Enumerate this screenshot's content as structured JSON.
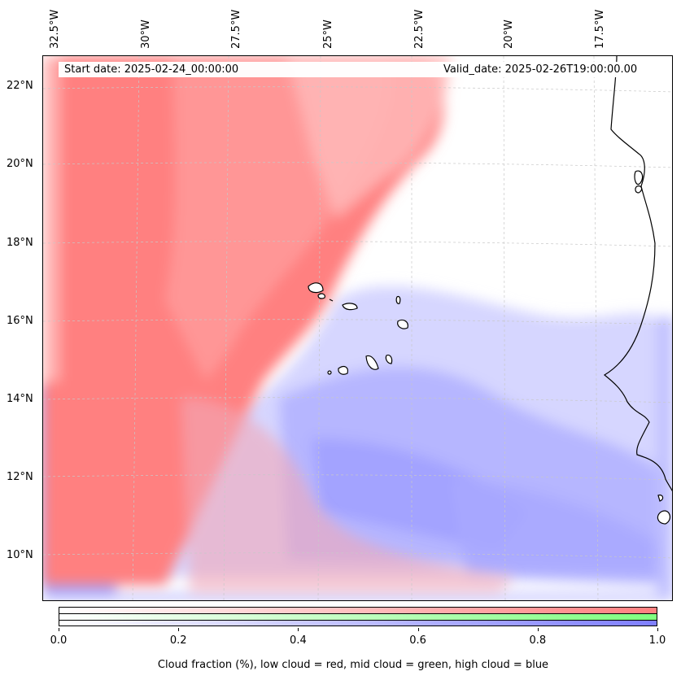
{
  "map": {
    "start_label": "Start date: 2025-02-24_00:00:00",
    "valid_label": "Valid_date: 2025-02-26T19:00:00.00",
    "longitude_labels": [
      "32.5°W",
      "30°W",
      "27.5°W",
      "25°W",
      "22.5°W",
      "20°W",
      "17.5°W"
    ],
    "latitude_labels": [
      "22°N",
      "20°N",
      "18°N",
      "16°N",
      "14°N",
      "12°N",
      "10°N"
    ],
    "coastline_color": "#000000",
    "gridline_color": "#c8c8c8",
    "layers": [
      {
        "name": "low cloud",
        "color": "#ff7f7f"
      },
      {
        "name": "mid cloud",
        "color": "#7fff7f"
      },
      {
        "name": "high cloud",
        "color": "#7f7fff"
      }
    ]
  },
  "colorbar": {
    "ticks": [
      "0.0",
      "0.2",
      "0.4",
      "0.6",
      "0.8",
      "1.0"
    ],
    "caption": "Cloud fraction (%), low cloud = red, mid cloud = green, high cloud = blue",
    "low_color": "#ff7f7f",
    "mid_color": "#7fff7f",
    "high_color": "#7f7fff"
  }
}
